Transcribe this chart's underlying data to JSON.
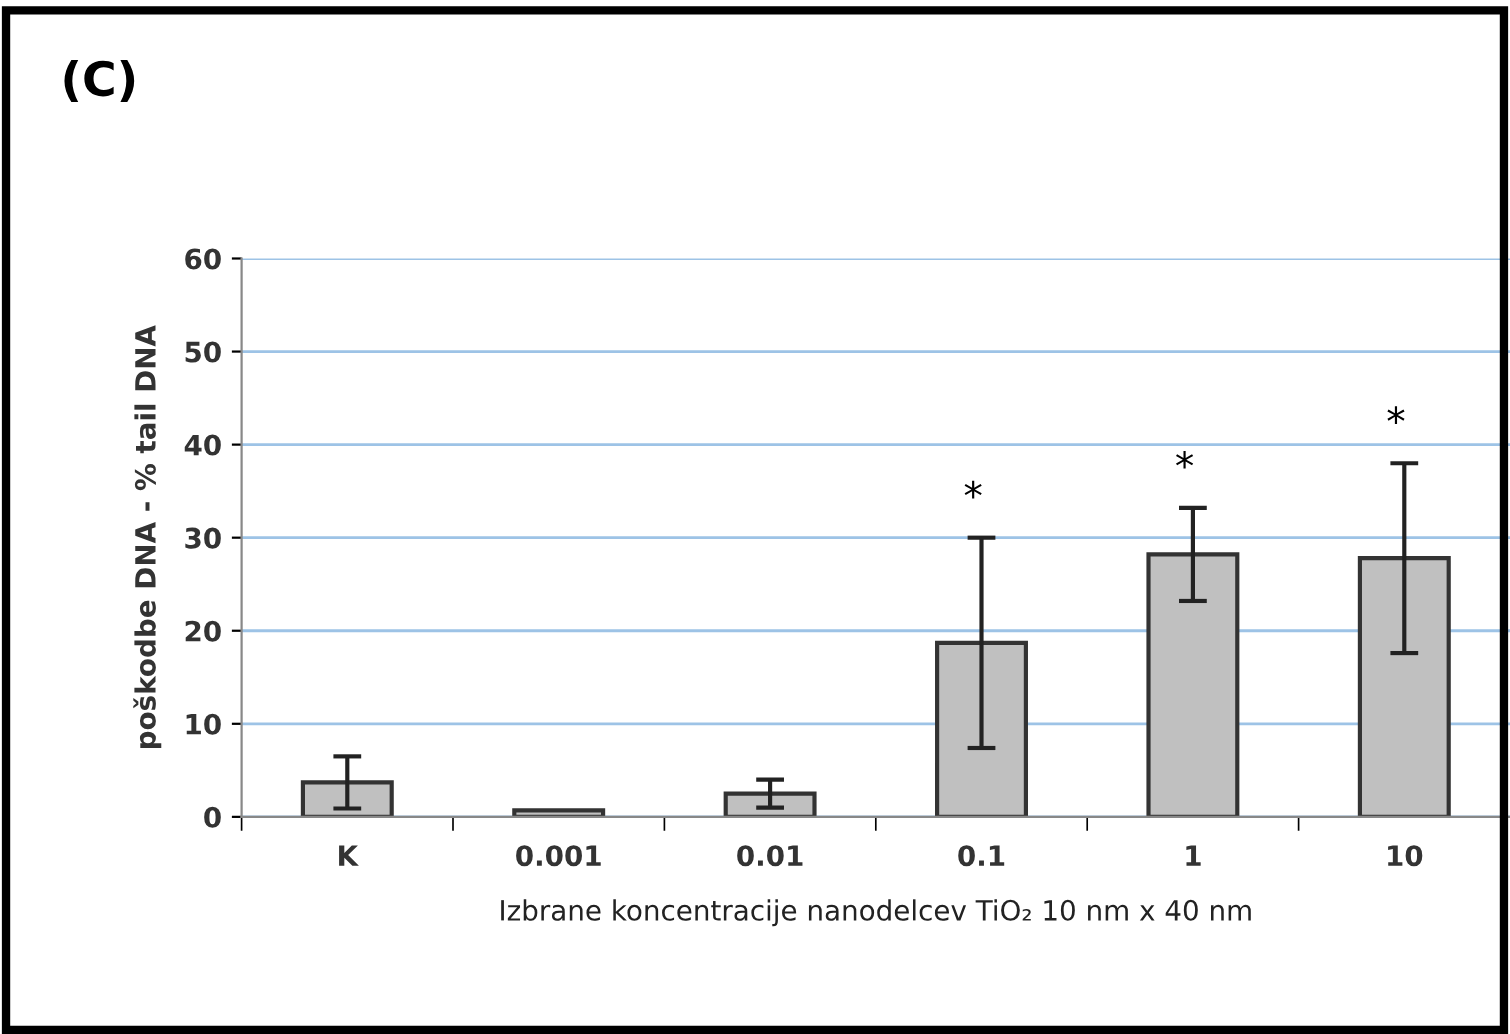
{
  "chart_data": {
    "type": "bar",
    "title": "(C)",
    "categories": [
      "K",
      "0.001",
      "0.01",
      "0.1",
      "1",
      "10"
    ],
    "values": [
      3.7,
      0.7,
      2.5,
      18.7,
      28.2,
      27.8
    ],
    "errors": [
      2.8,
      null,
      1.5,
      11.3,
      5,
      10.2
    ],
    "color": "#c0c0c0",
    "xlabel": "Izbrane koncentracije nanodelcev TiO₂ 10 nm x 40 nm",
    "ylabel": "poškodbe DNA - % tail DNA",
    "ylim": [
      0,
      60
    ],
    "yticks": [
      0,
      10,
      20,
      30,
      40,
      50,
      60
    ],
    "grid": "y",
    "annotations": [
      "*",
      "*",
      "*"
    ]
  }
}
